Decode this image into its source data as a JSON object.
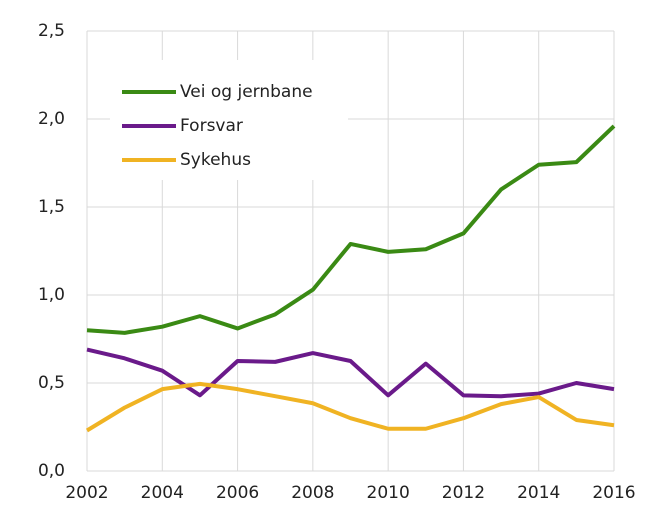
{
  "chart_data": {
    "type": "line",
    "x": [
      2002,
      2003,
      2004,
      2005,
      2006,
      2007,
      2008,
      2009,
      2010,
      2011,
      2012,
      2013,
      2014,
      2015,
      2016
    ],
    "series": [
      {
        "name": "Vei og jernbane",
        "color": "#3a8a14",
        "values": [
          0.8,
          0.785,
          0.82,
          0.88,
          0.81,
          0.89,
          1.03,
          1.29,
          1.245,
          1.26,
          1.35,
          1.6,
          1.74,
          1.755,
          1.96
        ]
      },
      {
        "name": "Forsvar",
        "color": "#6a1a8a",
        "values": [
          0.69,
          0.64,
          0.57,
          0.43,
          0.625,
          0.62,
          0.67,
          0.625,
          0.43,
          0.61,
          0.43,
          0.425,
          0.44,
          0.5,
          0.465
        ]
      },
      {
        "name": "Sykehus",
        "color": "#f0b323",
        "values": [
          0.23,
          0.36,
          0.465,
          0.495,
          0.465,
          0.425,
          0.385,
          0.3,
          0.24,
          0.24,
          0.3,
          0.38,
          0.42,
          0.29,
          0.26
        ]
      }
    ],
    "xlim": [
      2002,
      2016
    ],
    "xticks": [
      2002,
      2004,
      2006,
      2008,
      2010,
      2012,
      2014,
      2016
    ],
    "ylim": [
      0,
      2.5
    ],
    "yticks": [
      {
        "value": 0,
        "label": "0,0"
      },
      {
        "value": 0.5,
        "label": "0,5"
      },
      {
        "value": 1,
        "label": "1,0"
      },
      {
        "value": 1.5,
        "label": "1,5"
      },
      {
        "value": 2,
        "label": "2,0"
      },
      {
        "value": 2.5,
        "label": "2,5"
      }
    ],
    "grid": true,
    "legend": "upper left"
  }
}
